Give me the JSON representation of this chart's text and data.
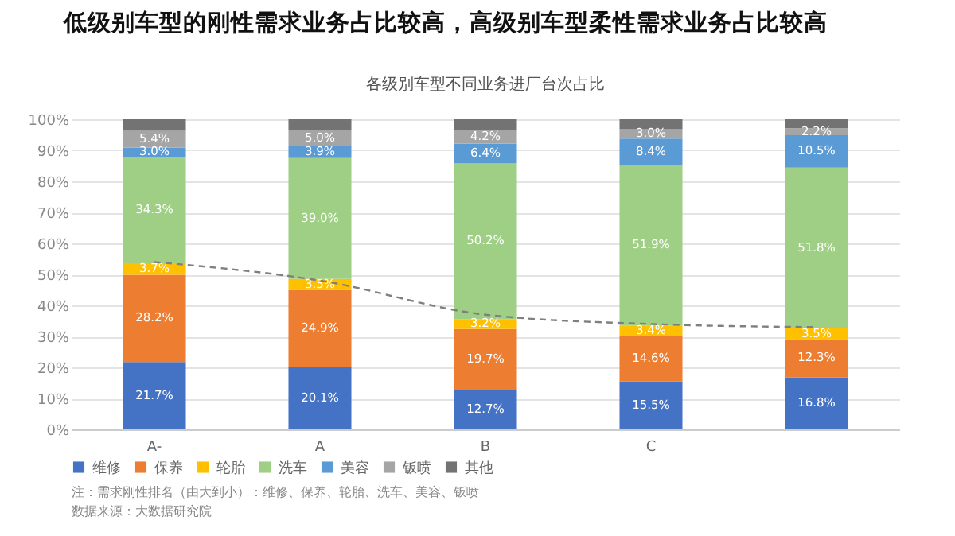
{
  "chart_data": {
    "type": "bar",
    "stacked": true,
    "title": "低级别车型的刚性需求业务占比较高，高级别车型柔性需求业务占比较高",
    "subtitle": "各级别车型不同业务进厂台次占比",
    "categories": [
      "A-",
      "A",
      "B",
      "C",
      null
    ],
    "series": [
      {
        "name": "维修",
        "color": "#4472c4",
        "values": [
          21.7,
          20.1,
          12.7,
          15.5,
          16.8
        ],
        "value_labels": [
          "21.7%",
          "20.1%",
          "12.7%",
          "15.5%",
          "16.8%"
        ]
      },
      {
        "name": "保养",
        "color": "#ed7d31",
        "values": [
          28.2,
          24.9,
          19.7,
          14.6,
          12.3
        ],
        "value_labels": [
          "28.2%",
          "24.9%",
          "19.7%",
          "14.6%",
          "12.3%"
        ]
      },
      {
        "name": "轮胎",
        "color": "#ffc000",
        "values": [
          3.7,
          3.5,
          3.2,
          3.4,
          3.5
        ],
        "value_labels": [
          "3.7%",
          "3.5%",
          "3.2%",
          "3.4%",
          "3.5%"
        ]
      },
      {
        "name": "洗车",
        "color": "#9fcf84",
        "values": [
          34.3,
          39.0,
          50.2,
          51.9,
          51.8
        ],
        "value_labels": [
          "34.3%",
          "39.0%",
          "50.2%",
          "51.9%",
          "51.8%"
        ]
      },
      {
        "name": "美容",
        "color": "#5b9bd5",
        "values": [
          3.0,
          3.9,
          6.4,
          8.4,
          10.5
        ],
        "value_labels": [
          "3.0%",
          "3.9%",
          "6.4%",
          "8.4%",
          "10.5%"
        ]
      },
      {
        "name": "钣喷",
        "color": "#a5a5a5",
        "values": [
          5.4,
          5.0,
          4.2,
          3.0,
          2.2
        ],
        "value_labels": [
          "5.4%",
          "5.0%",
          "4.2%",
          "3.0%",
          "2.2%"
        ]
      },
      {
        "name": "其他",
        "color": "#737373",
        "values": [
          3.7,
          3.6,
          3.6,
          3.2,
          2.9
        ]
      },
      {
        "type": "line",
        "color": "#7f7f7f",
        "line_style": "dashed",
        "values": [
          54,
          48,
          37,
          34,
          33
        ]
      }
    ],
    "ylim": [
      0,
      100
    ],
    "yticks": [
      {
        "value": 0,
        "label": "0%"
      },
      {
        "value": 10,
        "label": "10%"
      },
      {
        "value": 20,
        "label": "20%"
      },
      {
        "value": 30,
        "label": "30%"
      },
      {
        "value": 40,
        "label": "40%"
      },
      {
        "value": 50,
        "label": "50%"
      },
      {
        "value": 60,
        "label": "60%"
      },
      {
        "value": 70,
        "label": "70%"
      },
      {
        "value": 80,
        "label": "80%"
      },
      {
        "value": 90,
        "label": "90%"
      },
      {
        "value": 100,
        "label": "100%"
      }
    ],
    "grid": "y",
    "legend": "bottom",
    "annotations": [
      "注：需求刚性排名（由大到小）：维修、保养、轮胎、洗车、美容、钣喷",
      "数据来源：大数据研究院"
    ]
  }
}
